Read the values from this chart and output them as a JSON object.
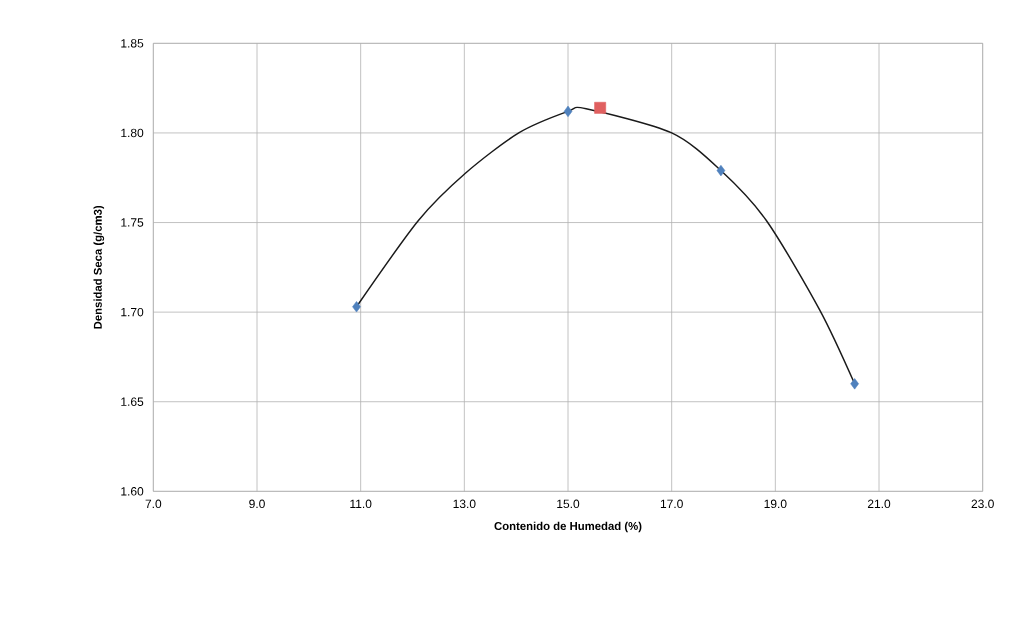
{
  "chart_data": {
    "type": "scatter",
    "xlabel": "Contenido de Humedad (%)",
    "ylabel": "Densidad Seca (g/cm3)",
    "series": [
      {
        "type": "line",
        "color": "#1a1a1a",
        "marker": "none",
        "x": [
          10.92,
          12.11,
          13.02,
          14.05,
          15.0,
          15.35,
          17.0,
          17.95,
          18.83,
          19.86,
          20.53
        ],
        "values": [
          1.703,
          1.751,
          1.7775,
          1.8,
          1.812,
          1.8135,
          1.8,
          1.779,
          1.751,
          1.701,
          1.66
        ]
      },
      {
        "color": "#4f81bd",
        "marker": "diamond",
        "x": [
          10.92,
          15.0,
          17.95,
          20.53
        ],
        "values": [
          1.703,
          1.812,
          1.779,
          1.66
        ]
      },
      {
        "color": "#e06060",
        "marker": "square",
        "x": [
          15.62
        ],
        "values": [
          1.814
        ]
      }
    ],
    "xlim": [
      7.0,
      23.0
    ],
    "ylim": [
      1.6,
      1.85
    ],
    "xticks": [
      {
        "value": 7,
        "label": "7.0"
      },
      {
        "value": 9,
        "label": "9.0"
      },
      {
        "value": 11,
        "label": "11.0"
      },
      {
        "value": 13,
        "label": "13.0"
      },
      {
        "value": 15,
        "label": "15.0"
      },
      {
        "value": 17,
        "label": "17.0"
      },
      {
        "value": 19,
        "label": "19.0"
      },
      {
        "value": 21,
        "label": "21.0"
      },
      {
        "value": 23,
        "label": "23.0"
      }
    ],
    "yticks": [
      {
        "value": 1.6,
        "label": "1.60"
      },
      {
        "value": 1.65,
        "label": "1.65"
      },
      {
        "value": 1.7,
        "label": "1.70"
      },
      {
        "value": 1.75,
        "label": "1.75"
      },
      {
        "value": 1.8,
        "label": "1.80"
      },
      {
        "value": 1.85,
        "label": "1.85"
      }
    ],
    "grid": true
  }
}
